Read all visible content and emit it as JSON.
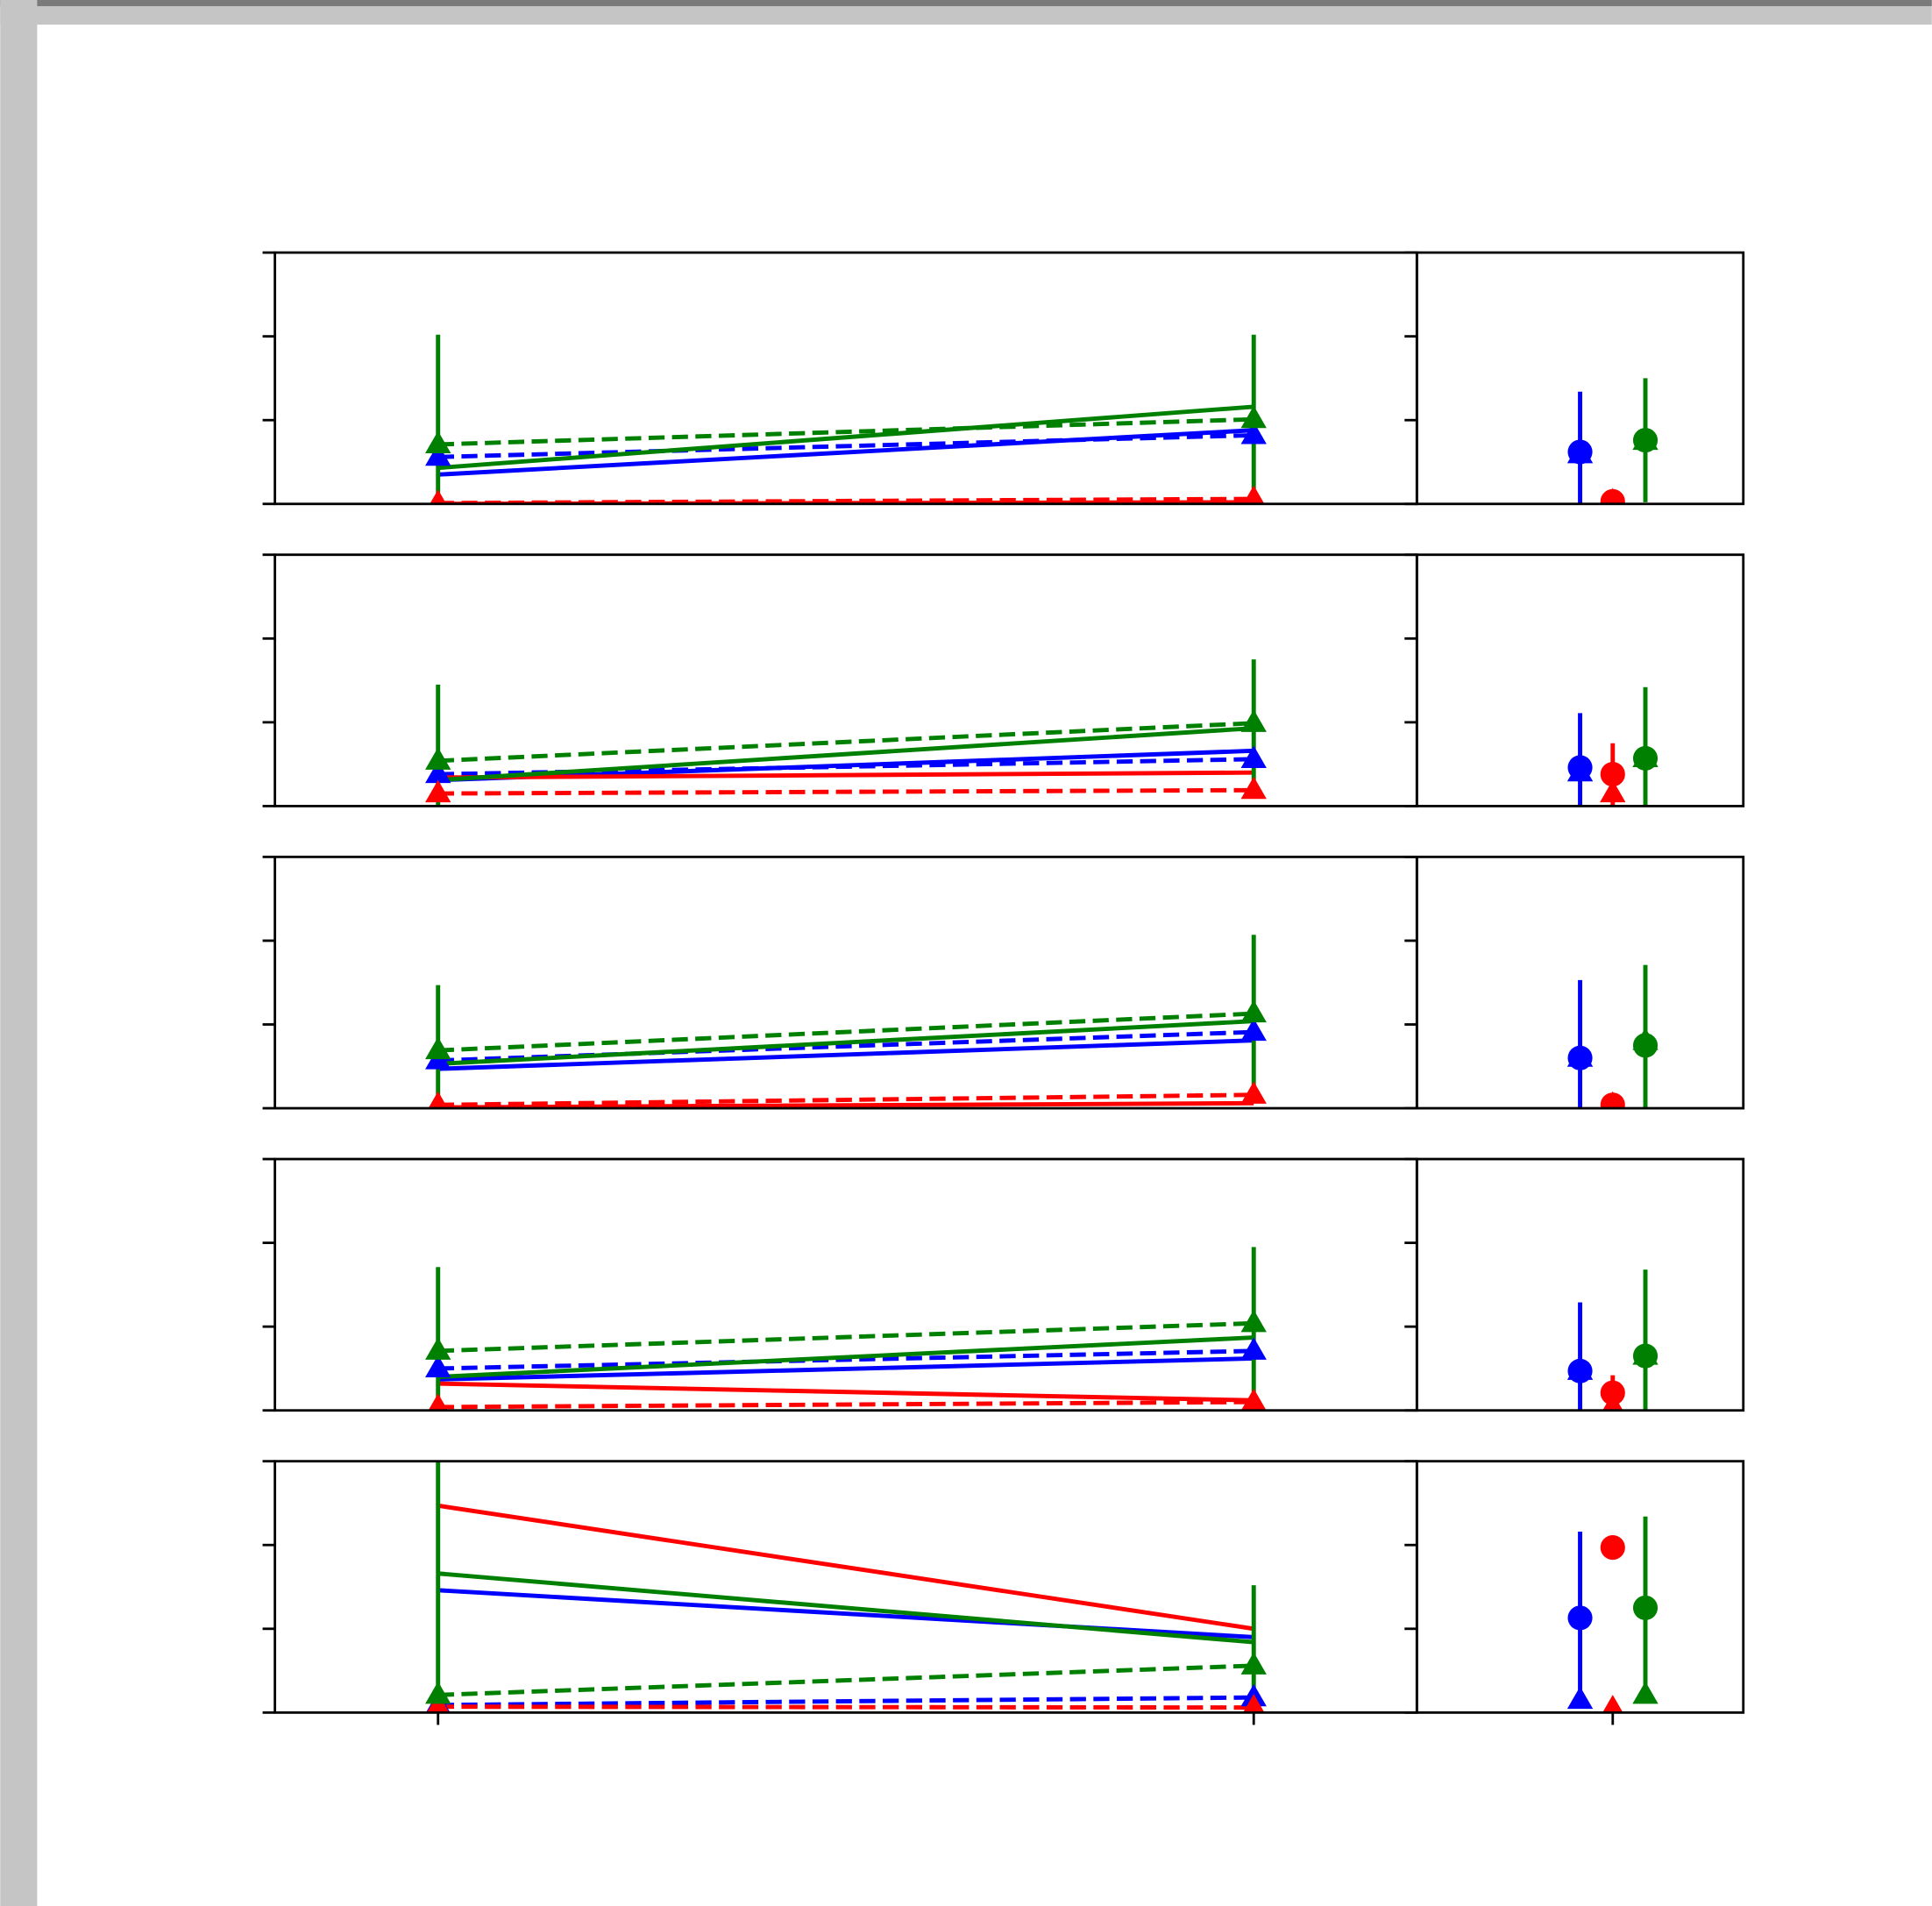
{
  "chart_data": [
    {
      "type": "line",
      "x": [
        0,
        1
      ],
      "xlim": [
        -0.2,
        1.2
      ],
      "ylim": [
        0,
        3
      ],
      "yticks": [
        0,
        1,
        2,
        3
      ],
      "series": [
        {
          "color": "#0000ff",
          "linestyle": "solid",
          "values": [
            0.35,
            0.88
          ]
        },
        {
          "color": "#0000ff",
          "linestyle": "dashed",
          "marker": "triangle",
          "values": [
            0.56,
            0.82
          ]
        },
        {
          "color": "#ff0000",
          "linestyle": "solid",
          "values": [
            0.0,
            0.02
          ]
        },
        {
          "color": "#ff0000",
          "linestyle": "dashed",
          "marker": "triangle",
          "values": [
            0.01,
            0.06
          ]
        },
        {
          "color": "#008000",
          "linestyle": "solid",
          "values": [
            0.43,
            1.16
          ]
        },
        {
          "color": "#008000",
          "linestyle": "dashed",
          "marker": "triangle",
          "values": [
            0.71,
            1.01
          ],
          "errors": [
            1.31,
            1.01
          ]
        }
      ]
    },
    {
      "type": "errorbar",
      "x": [
        -0.1,
        0,
        0.1
      ],
      "colors": [
        "#0000ff",
        "#ff0000",
        "#008000"
      ],
      "xlim": [
        -0.6,
        0.4
      ],
      "ylim": [
        0,
        3
      ],
      "yticks": [
        0,
        1,
        2,
        3
      ],
      "series": [
        {
          "marker": "triangle",
          "values": [
            0.59,
            0.03,
            0.75
          ]
        },
        {
          "marker": "circle",
          "values": [
            0.62,
            0.03,
            0.76
          ],
          "errors": [
            0.72,
            0.05,
            0.74
          ]
        }
      ]
    },
    {
      "type": "line",
      "x": [
        0,
        1
      ],
      "xlim": [
        -0.2,
        1.2
      ],
      "ylim": [
        0,
        3
      ],
      "yticks": [
        0,
        1,
        2,
        3
      ],
      "series": [
        {
          "color": "#0000ff",
          "linestyle": "solid",
          "values": [
            0.31,
            0.66
          ]
        },
        {
          "color": "#0000ff",
          "linestyle": "dashed",
          "marker": "triangle",
          "values": [
            0.38,
            0.56
          ]
        },
        {
          "color": "#ff0000",
          "linestyle": "solid",
          "values": [
            0.34,
            0.4
          ]
        },
        {
          "color": "#ff0000",
          "linestyle": "dashed",
          "marker": "triangle",
          "values": [
            0.15,
            0.19
          ]
        },
        {
          "color": "#008000",
          "linestyle": "solid",
          "values": [
            0.31,
            0.93
          ]
        },
        {
          "color": "#008000",
          "linestyle": "dashed",
          "marker": "triangle",
          "values": [
            0.54,
            0.99
          ],
          "errors": [
            0.91,
            0.76
          ]
        }
      ]
    },
    {
      "type": "errorbar",
      "x": [
        -0.1,
        0,
        0.1
      ],
      "colors": [
        "#0000ff",
        "#ff0000",
        "#008000"
      ],
      "xlim": [
        -0.6,
        0.4
      ],
      "ylim": [
        0,
        3
      ],
      "yticks": [
        0,
        1,
        2,
        3
      ],
      "series": [
        {
          "marker": "triangle",
          "values": [
            0.4,
            0.15,
            0.57
          ]
        },
        {
          "marker": "circle",
          "values": [
            0.46,
            0.38,
            0.57
          ],
          "errors": [
            0.65,
            0.37,
            0.85
          ]
        }
      ]
    },
    {
      "type": "line",
      "x": [
        0,
        1
      ],
      "xlim": [
        -0.2,
        1.2
      ],
      "ylim": [
        0,
        3
      ],
      "yticks": [
        0,
        1,
        2,
        3
      ],
      "series": [
        {
          "color": "#0000ff",
          "linestyle": "solid",
          "values": [
            0.47,
            0.81
          ]
        },
        {
          "color": "#0000ff",
          "linestyle": "dashed",
          "marker": "triangle",
          "values": [
            0.57,
            0.91
          ]
        },
        {
          "color": "#ff0000",
          "linestyle": "solid",
          "values": [
            0.01,
            0.06
          ]
        },
        {
          "color": "#ff0000",
          "linestyle": "dashed",
          "marker": "triangle",
          "values": [
            0.04,
            0.16
          ]
        },
        {
          "color": "#008000",
          "linestyle": "solid",
          "values": [
            0.53,
            1.04
          ]
        },
        {
          "color": "#008000",
          "linestyle": "dashed",
          "marker": "triangle",
          "values": [
            0.69,
            1.13
          ],
          "errors": [
            0.78,
            0.94
          ]
        }
      ]
    },
    {
      "type": "errorbar",
      "x": [
        -0.1,
        0,
        0.1
      ],
      "colors": [
        "#0000ff",
        "#ff0000",
        "#008000"
      ],
      "xlim": [
        -0.6,
        0.4
      ],
      "ylim": [
        0,
        3
      ],
      "yticks": [
        0,
        1,
        2,
        3
      ],
      "series": [
        {
          "marker": "triangle",
          "values": [
            0.6,
            0.04,
            0.8
          ]
        },
        {
          "marker": "circle",
          "values": [
            0.6,
            0.04,
            0.75
          ],
          "errors": [
            0.93,
            0.03,
            0.96
          ]
        }
      ]
    },
    {
      "type": "line",
      "x": [
        0,
        1
      ],
      "xlim": [
        -0.2,
        1.2
      ],
      "ylim": [
        0,
        3
      ],
      "yticks": [
        0,
        1,
        2,
        3
      ],
      "series": [
        {
          "color": "#0000ff",
          "linestyle": "solid",
          "values": [
            0.37,
            0.62
          ]
        },
        {
          "color": "#0000ff",
          "linestyle": "dashed",
          "marker": "triangle",
          "values": [
            0.5,
            0.71
          ]
        },
        {
          "color": "#ff0000",
          "linestyle": "solid",
          "values": [
            0.32,
            0.12
          ]
        },
        {
          "color": "#ff0000",
          "linestyle": "dashed",
          "marker": "triangle",
          "values": [
            0.04,
            0.1
          ]
        },
        {
          "color": "#008000",
          "linestyle": "solid",
          "values": [
            0.4,
            0.87
          ]
        },
        {
          "color": "#008000",
          "linestyle": "dashed",
          "marker": "triangle",
          "values": [
            0.71,
            1.04
          ],
          "errors": [
            1.0,
            0.91
          ]
        }
      ]
    },
    {
      "type": "errorbar",
      "x": [
        -0.1,
        0,
        0.1
      ],
      "colors": [
        "#0000ff",
        "#ff0000",
        "#008000"
      ],
      "xlim": [
        -0.6,
        0.4
      ],
      "ylim": [
        0,
        3
      ],
      "yticks": [
        0,
        1,
        2,
        3
      ],
      "series": [
        {
          "marker": "triangle",
          "values": [
            0.47,
            0.05,
            0.65
          ]
        },
        {
          "marker": "circle",
          "values": [
            0.47,
            0.21,
            0.65
          ],
          "errors": [
            0.82,
            0.21,
            1.03
          ]
        }
      ]
    },
    {
      "type": "line",
      "x": [
        0,
        1
      ],
      "xlim": [
        -0.2,
        1.2
      ],
      "ylim": [
        0,
        3
      ],
      "yticks": [
        0,
        1,
        2,
        3
      ],
      "xticks": [
        0,
        1
      ],
      "series": [
        {
          "color": "#0000ff",
          "linestyle": "solid",
          "values": [
            1.46,
            0.9
          ]
        },
        {
          "color": "#0000ff",
          "linestyle": "dashed",
          "marker": "triangle",
          "values": [
            0.09,
            0.18
          ]
        },
        {
          "color": "#ff0000",
          "linestyle": "solid",
          "values": [
            2.47,
            1.0
          ]
        },
        {
          "color": "#ff0000",
          "linestyle": "dashed",
          "marker": "triangle",
          "values": [
            0.07,
            0.06
          ]
        },
        {
          "color": "#008000",
          "linestyle": "solid",
          "values": [
            1.66,
            0.84
          ]
        },
        {
          "color": "#008000",
          "linestyle": "dashed",
          "marker": "triangle",
          "values": [
            0.21,
            0.56
          ],
          "errors": [
            3.0,
            0.96
          ]
        }
      ]
    },
    {
      "type": "errorbar",
      "x": [
        -0.1,
        0,
        0.1
      ],
      "colors": [
        "#0000ff",
        "#ff0000",
        "#008000"
      ],
      "xlim": [
        -0.6,
        0.4
      ],
      "ylim": [
        0,
        3
      ],
      "yticks": [
        0,
        1,
        2,
        3
      ],
      "xticks": [
        0
      ],
      "series": [
        {
          "marker": "triangle",
          "values": [
            0.15,
            0.05,
            0.21
          ]
        },
        {
          "marker": "circle",
          "values": [
            1.13,
            1.97,
            1.25
          ],
          "errors": [
            1.03,
            0,
            1.09
          ]
        }
      ]
    }
  ]
}
